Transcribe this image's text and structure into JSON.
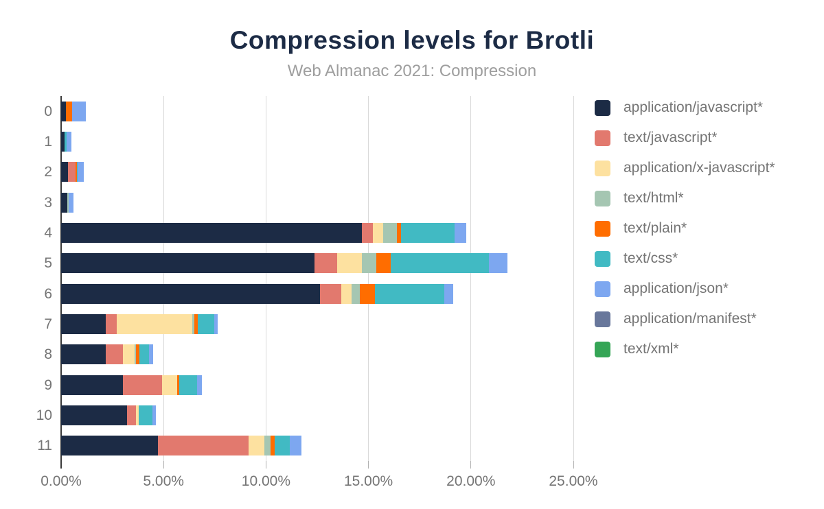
{
  "header": {
    "title": "Compression levels for Brotli",
    "subtitle": "Web Almanac 2021: Compression"
  },
  "colors": {
    "title_text": "#1c2b45",
    "subtitle_text": "#9e9e9e",
    "axis_text": "#757575",
    "legend_text": "#757575",
    "gridline": "#d9d9d9",
    "zero_axis": "#3a3a3a"
  },
  "chart_data": {
    "type": "bar",
    "orientation": "horizontal-stacked",
    "title": "Compression levels for Brotli",
    "subtitle": "Web Almanac 2021: Compression",
    "xlabel": "",
    "ylabel": "",
    "xlim": [
      0,
      25.47
    ],
    "grid": "vertical",
    "legend_position": "right",
    "x_ticks": [
      {
        "value": 0,
        "label": "0.00%"
      },
      {
        "value": 5,
        "label": "5.00%"
      },
      {
        "value": 10,
        "label": "10.00%"
      },
      {
        "value": 15,
        "label": "15.00%"
      },
      {
        "value": 20,
        "label": "20.00%"
      },
      {
        "value": 25,
        "label": "25.00%"
      }
    ],
    "categories": [
      "0",
      "1",
      "2",
      "3",
      "4",
      "5",
      "6",
      "7",
      "8",
      "9",
      "10",
      "11"
    ],
    "series": [
      {
        "name": "application/javascript*",
        "color": "#1c2b45",
        "values": [
          0.23,
          0.16,
          0.33,
          0.3,
          14.67,
          12.38,
          12.63,
          2.18,
          2.18,
          3.0,
          3.23,
          4.72
        ]
      },
      {
        "name": "text/javascript*",
        "color": "#e2796e",
        "values": [
          0,
          0,
          0.38,
          0,
          0.53,
          1.08,
          1.04,
          0.52,
          0.84,
          1.91,
          0.42,
          4.43
        ]
      },
      {
        "name": "application/x-javascript*",
        "color": "#fde1a0",
        "values": [
          0,
          0,
          0,
          0,
          0.51,
          1.21,
          0.5,
          3.7,
          0.56,
          0.75,
          0.15,
          0.78
        ]
      },
      {
        "name": "text/html*",
        "color": "#a5c6b2",
        "values": [
          0,
          0,
          0,
          0.08,
          0.68,
          0.71,
          0.41,
          0.09,
          0.08,
          0,
          0,
          0.29
        ]
      },
      {
        "name": "text/plain*",
        "color": "#ff6d00",
        "values": [
          0.3,
          0,
          0.07,
          0,
          0.2,
          0.72,
          0.75,
          0.19,
          0.15,
          0.1,
          0,
          0.19
        ]
      },
      {
        "name": "text/css*",
        "color": "#41bac3",
        "values": [
          0,
          0.11,
          0.04,
          0,
          2.62,
          4.79,
          3.38,
          0.79,
          0.47,
          0.89,
          0.67,
          0.76
        ]
      },
      {
        "name": "application/json*",
        "color": "#7da7f0",
        "values": [
          0.67,
          0.23,
          0.28,
          0.23,
          0.58,
          0.89,
          0.42,
          0.17,
          0.2,
          0.22,
          0.17,
          0.56
        ]
      },
      {
        "name": "application/manifest*",
        "color": "#68779b",
        "values": [
          0,
          0,
          0,
          0,
          0,
          0,
          0,
          0,
          0,
          0,
          0,
          0
        ]
      },
      {
        "name": "text/xml*",
        "color": "#35a556",
        "values": [
          0,
          0,
          0,
          0,
          0,
          0,
          0,
          0,
          0,
          0,
          0,
          0
        ]
      }
    ]
  }
}
